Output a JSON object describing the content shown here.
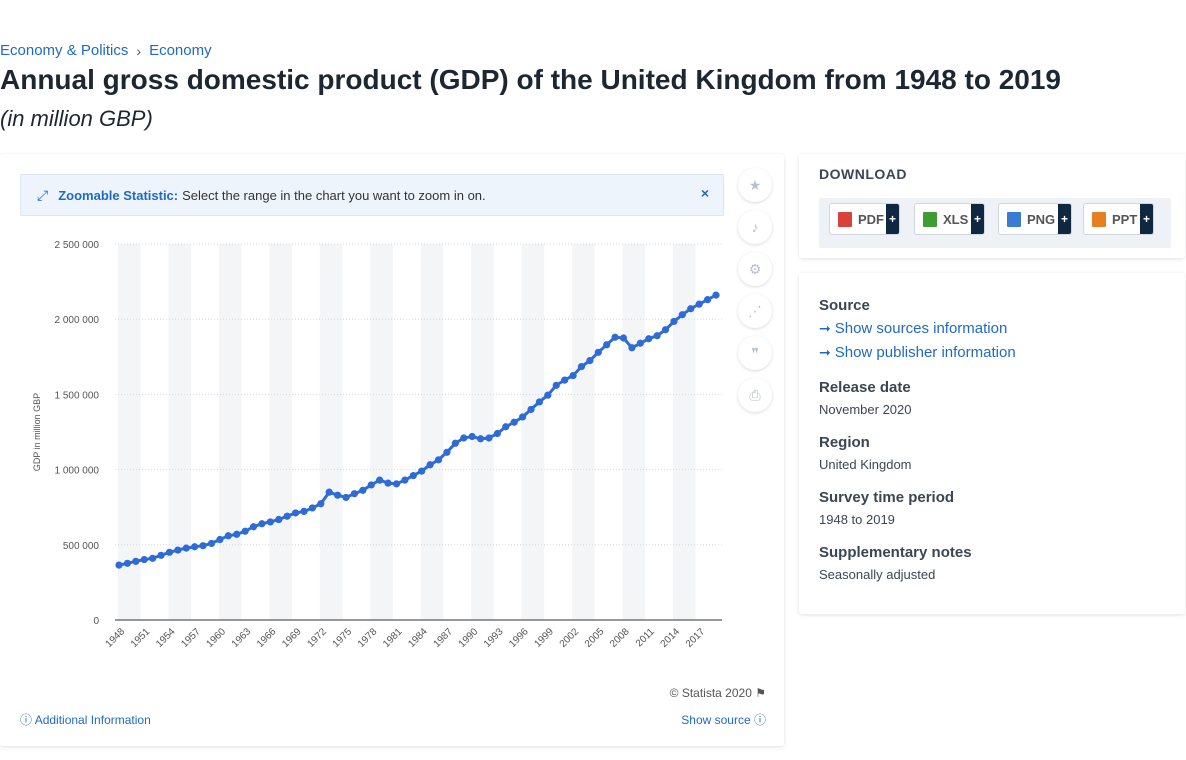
{
  "breadcrumb": {
    "items": [
      "Economy & Politics",
      "Economy"
    ],
    "separator": "›"
  },
  "title": "Annual gross domestic product (GDP) of the United Kingdom from 1948 to 2019",
  "subtitle": "(in million GBP)",
  "zoom_banner": {
    "title": "Zoomable Statistic:",
    "text": "Select the range in the chart you want to zoom in on.",
    "close": "×"
  },
  "side_tools": [
    {
      "name": "favorite-star-icon",
      "glyph": "★"
    },
    {
      "name": "notification-bell-icon",
      "glyph": "🔔"
    },
    {
      "name": "settings-gear-icon",
      "glyph": "⚙"
    },
    {
      "name": "share-icon",
      "glyph": "⋰"
    },
    {
      "name": "citation-quote-icon",
      "glyph": "❞"
    },
    {
      "name": "print-icon",
      "glyph": "⎙"
    }
  ],
  "chart_footer": {
    "credit": "© Statista 2020",
    "additional_info": "Additional Information",
    "show_source": "Show source"
  },
  "download": {
    "title": "DOWNLOAD",
    "buttons": [
      {
        "label": "PDF",
        "color": "#d9423a"
      },
      {
        "label": "XLS",
        "color": "#3f9c35"
      },
      {
        "label": "PNG",
        "color": "#3a7bd5"
      },
      {
        "label": "PPT",
        "color": "#e67e22"
      }
    ],
    "plus": "+"
  },
  "info": {
    "source_label": "Source",
    "source_link": "Show sources information",
    "publisher_link": "Show publisher information",
    "release_label": "Release date",
    "release_value": "November 2020",
    "region_label": "Region",
    "region_value": "United Kingdom",
    "survey_label": "Survey time period",
    "survey_value": "1948 to 2019",
    "notes_label": "Supplementary notes",
    "notes_value": "Seasonally adjusted"
  },
  "chart_data": {
    "type": "line",
    "ylabel": "GDP in million GBP",
    "xlabel": "",
    "ylim": [
      0,
      2500000
    ],
    "yticks": [
      0,
      500000,
      1000000,
      1500000,
      2000000,
      2500000
    ],
    "ytick_labels": [
      "0",
      "500 000",
      "1 000 000",
      "1 500 000",
      "2 000 000",
      "2 500 000"
    ],
    "xtick_labels": [
      "1948",
      "1951",
      "1954",
      "1957",
      "1960",
      "1963",
      "1966",
      "1969",
      "1972",
      "1975",
      "1978",
      "1981",
      "1984",
      "1987",
      "1990",
      "1993",
      "1996",
      "1999",
      "2002",
      "2005",
      "2008",
      "2011",
      "2014",
      "2017"
    ],
    "grid": true,
    "legend": "none",
    "line_color": "#2e6bd6",
    "years": [
      1948,
      1949,
      1950,
      1951,
      1952,
      1953,
      1954,
      1955,
      1956,
      1957,
      1958,
      1959,
      1960,
      1961,
      1962,
      1963,
      1964,
      1965,
      1966,
      1967,
      1968,
      1969,
      1970,
      1971,
      1972,
      1973,
      1974,
      1975,
      1976,
      1977,
      1978,
      1979,
      1980,
      1981,
      1982,
      1983,
      1984,
      1985,
      1986,
      1987,
      1988,
      1989,
      1990,
      1991,
      1992,
      1993,
      1994,
      1995,
      1996,
      1997,
      1998,
      1999,
      2000,
      2001,
      2002,
      2003,
      2004,
      2005,
      2006,
      2007,
      2008,
      2009,
      2010,
      2011,
      2012,
      2013,
      2014,
      2015,
      2016,
      2017,
      2018,
      2019
    ],
    "values": [
      365000,
      377000,
      390000,
      402000,
      410000,
      430000,
      450000,
      465000,
      478000,
      487000,
      494000,
      509000,
      535000,
      560000,
      570000,
      590000,
      620000,
      640000,
      652000,
      668000,
      690000,
      712000,
      722000,
      745000,
      773000,
      850000,
      830000,
      815000,
      840000,
      862000,
      898000,
      930000,
      910000,
      905000,
      930000,
      960000,
      990000,
      1032000,
      1065000,
      1115000,
      1175000,
      1210000,
      1220000,
      1205000,
      1210000,
      1240000,
      1285000,
      1315000,
      1350000,
      1400000,
      1450000,
      1495000,
      1560000,
      1595000,
      1625000,
      1685000,
      1725000,
      1780000,
      1830000,
      1880000,
      1875000,
      1810000,
      1840000,
      1870000,
      1890000,
      1930000,
      1985000,
      2030000,
      2070000,
      2100000,
      2130000,
      2160000
    ]
  }
}
